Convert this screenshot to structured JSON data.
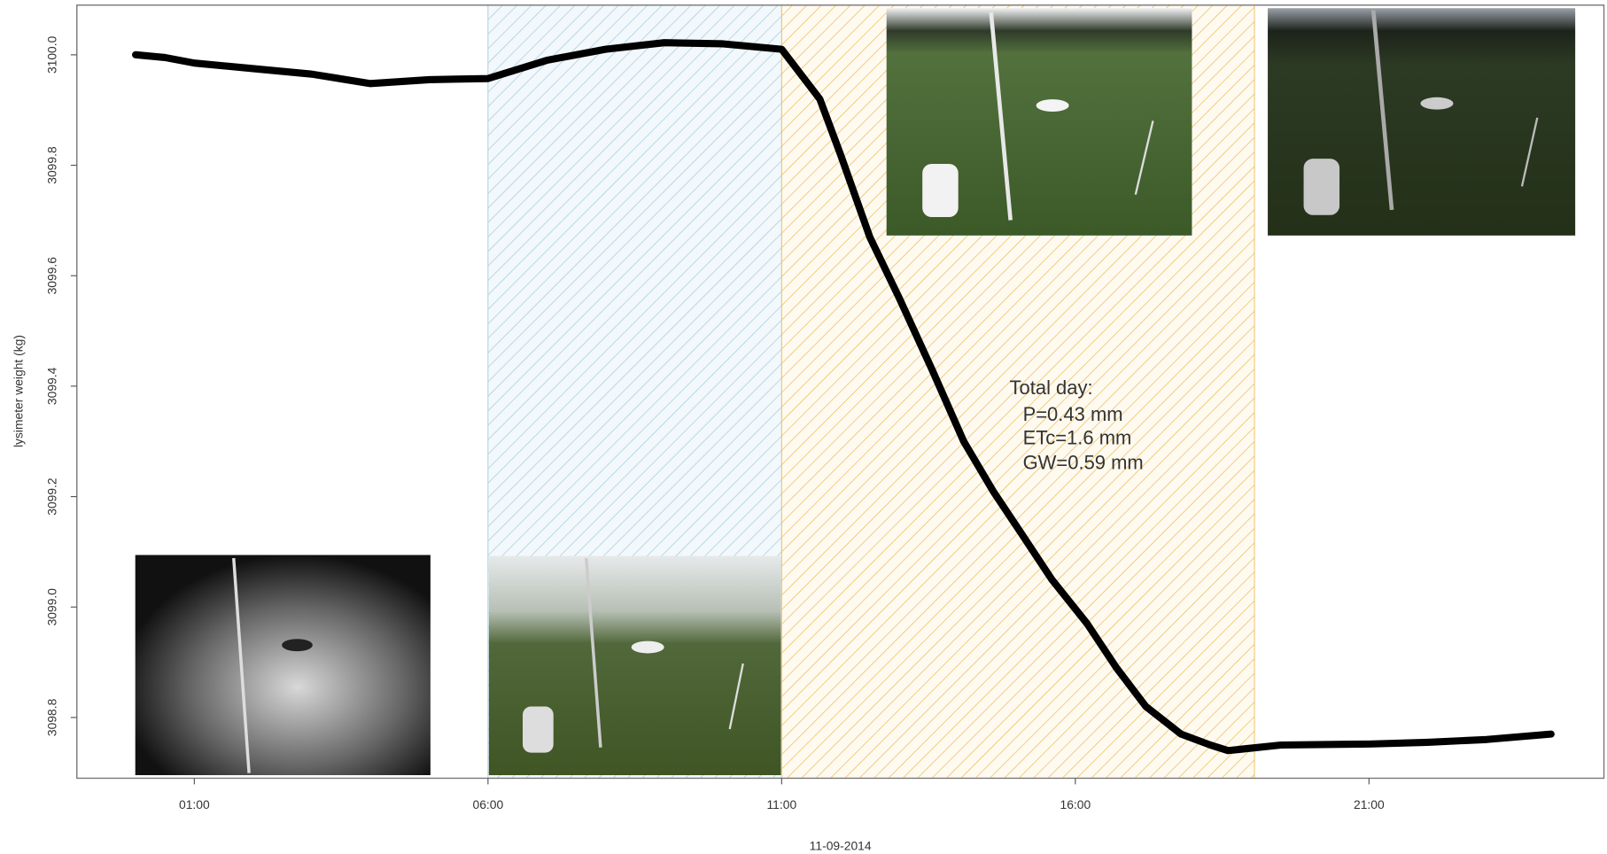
{
  "chart_data": {
    "type": "line",
    "xlabel": "11-09-2014",
    "ylabel": "lysimeter weight (kg)",
    "annotation": [
      "Total day:",
      "P=0.43 mm",
      "ETc=1.6 mm",
      "GW=0.59 mm"
    ],
    "xlim": [
      -1,
      25
    ],
    "ylim": [
      3098.69,
      3100.09
    ],
    "xticks": [
      {
        "value": 1,
        "label": "01:00"
      },
      {
        "value": 6,
        "label": "06:00"
      },
      {
        "value": 11,
        "label": "11:00"
      },
      {
        "value": 16,
        "label": "16:00"
      },
      {
        "value": 21,
        "label": "21:00"
      }
    ],
    "yticks": [
      {
        "value": 3098.8,
        "label": "3098.8"
      },
      {
        "value": 3099,
        "label": "3099.0"
      },
      3099.2,
      3099.4,
      3099.6,
      3099.8,
      {
        "value": 3100,
        "label": "3100.0"
      }
    ],
    "regions": [
      {
        "start": 6,
        "end": 11,
        "color": "#a9cde0"
      },
      {
        "start": 11,
        "end": 19.05,
        "color": "#e8c060"
      }
    ],
    "series": [
      {
        "color": "#000000",
        "x": [
          0,
          0.5,
          1,
          2,
          3,
          4,
          5,
          6,
          7,
          8,
          9,
          10,
          11,
          11.65,
          12,
          12.5,
          13,
          13.56,
          14.1,
          14.6,
          15.1,
          15.6,
          16.2,
          16.7,
          17.2,
          17.8,
          18.3,
          18.6,
          19.5,
          21,
          22,
          23,
          24.1
        ],
        "values": [
          3100.0,
          3099.995,
          3099.985,
          3099.975,
          3099.965,
          3099.948,
          3099.955,
          3099.957,
          3099.99,
          3100.01,
          3100.022,
          3100.02,
          3100.01,
          3099.92,
          3099.82,
          3099.67,
          3099.56,
          3099.43,
          3099.3,
          3099.21,
          3099.13,
          3099.05,
          3098.97,
          3098.89,
          3098.82,
          3098.77,
          3098.75,
          3098.74,
          3098.75,
          3098.752,
          3098.755,
          3098.76,
          3098.77
        ]
      }
    ]
  }
}
